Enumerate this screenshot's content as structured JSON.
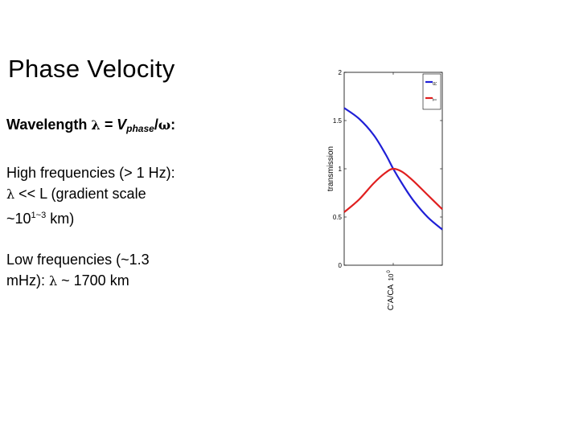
{
  "slide": {
    "title": "Phase Velocity",
    "equation": {
      "label": "Wavelength",
      "lambda": "λ",
      "eq": "= V",
      "subscript": "phase",
      "slash": "/",
      "omega": "ω",
      "colon": ":"
    },
    "high_freq": {
      "line1": "High frequencies (> 1 Hz):",
      "lambda": "λ",
      "line2": " << L (gradient scale",
      "line3_prefix": "~10",
      "line3_sup": "1~3",
      "line3_suffix": " km)"
    },
    "low_freq": {
      "line1": "Low frequencies (~1.3",
      "line2_prefix": "mHz): ",
      "lambda": "λ",
      "line2_suffix": " ~ 1700 km"
    }
  },
  "chart_data": {
    "type": "line",
    "ylabel": "transmission",
    "xlabel": "C'A/CA",
    "x_scale": "log",
    "ylim": [
      0,
      2
    ],
    "yticks": [
      "0",
      "0.5",
      "1",
      "1.5",
      "2"
    ],
    "xtick_label": "10",
    "xtick_sup": "0",
    "series": [
      {
        "name": "R",
        "color": "#1f1fd6",
        "x": [
          0.1,
          0.2,
          0.4,
          0.7,
          1.0,
          1.5,
          2.5,
          5,
          10
        ],
        "y": [
          1.63,
          1.52,
          1.35,
          1.15,
          1.0,
          0.85,
          0.68,
          0.5,
          0.37
        ]
      },
      {
        "name": "T",
        "color": "#e01f1f",
        "x": [
          0.1,
          0.2,
          0.4,
          0.7,
          1.0,
          1.5,
          2.5,
          5,
          10
        ],
        "y": [
          0.55,
          0.68,
          0.85,
          0.96,
          1.0,
          0.97,
          0.88,
          0.73,
          0.58
        ]
      }
    ],
    "legend": {
      "position": "top-right",
      "entries": [
        "R",
        "T"
      ]
    }
  }
}
